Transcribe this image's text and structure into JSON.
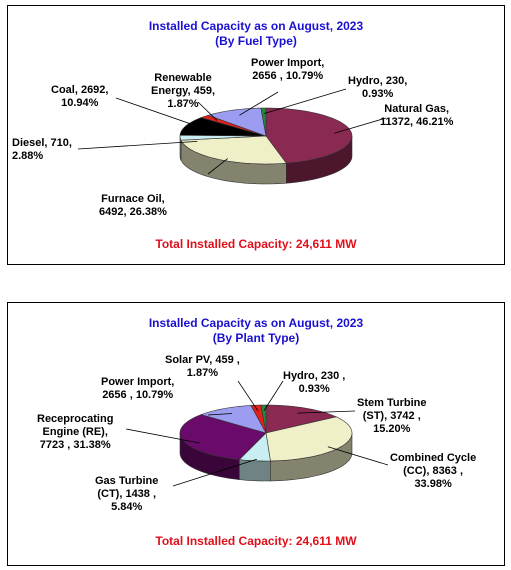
{
  "chart_data": [
    {
      "type": "pie",
      "title": "Installed Capacity as on August, 2023",
      "subtitle": "(By Fuel Type)",
      "total_text": "Total Installed Capacity: 24,611 MW",
      "slices": [
        {
          "name": "Natural Gas",
          "value": 11372,
          "percent": "46.21%",
          "color": "#8a2a52",
          "label_lines": [
            "Natural Gas,",
            "11372, 46.21%"
          ]
        },
        {
          "name": "Furnace Oil",
          "value": 6492,
          "percent": "26.38%",
          "color": "#efefc8",
          "label_lines": [
            "Furnace Oil,",
            "6492, 26.38%"
          ]
        },
        {
          "name": "Diesel",
          "value": 710,
          "percent": "2.88%",
          "color": "#c9eef2",
          "label_lines": [
            "Diesel, 710,",
            "2.88%"
          ]
        },
        {
          "name": "Coal",
          "value": 2692,
          "percent": "10.94%",
          "color": "#000000",
          "label_lines": [
            "Coal, 2692,",
            "10.94%"
          ]
        },
        {
          "name": "Renewable Energy",
          "value": 459,
          "percent": "1.87%",
          "color": "#e0201b",
          "label_lines": [
            "Renewable",
            "Energy, 459,",
            "1.87%"
          ]
        },
        {
          "name": "Power Import",
          "value": 2656,
          "percent": "10.79%",
          "color": "#9c9cf0",
          "label_lines": [
            "Power Import,",
            "2656 , 10.79%"
          ]
        },
        {
          "name": "Hydro",
          "value": 230,
          "percent": "0.93%",
          "color": "#1f8a3c",
          "label_lines": [
            "Hydro, 230,",
            "0.93%"
          ]
        }
      ]
    },
    {
      "type": "pie",
      "title": "Installed Capacity as on August, 2023",
      "subtitle": "(By Plant Type)",
      "total_text": "Total Installed Capacity: 24,611 MW",
      "slices": [
        {
          "name": "Stem Turbine (ST)",
          "value": 3742,
          "percent": "15.20%",
          "color": "#8a2a52",
          "label_lines": [
            "Stem Turbine",
            "(ST), 3742 ,",
            "15.20%"
          ]
        },
        {
          "name": "Combined Cycle (CC)",
          "value": 8363,
          "percent": "33.98%",
          "color": "#efefc8",
          "label_lines": [
            "Combined Cycle",
            "(CC), 8363 ,",
            "33.98%"
          ]
        },
        {
          "name": "Gas Turbine (CT)",
          "value": 1438,
          "percent": "5.84%",
          "color": "#c9eef2",
          "label_lines": [
            "Gas Turbine",
            "(CT), 1438 ,",
            "5.84%"
          ]
        },
        {
          "name": "Receprocating Engine (RE)",
          "value": 7723,
          "percent": "31.38%",
          "color": "#6a0a6a",
          "label_lines": [
            "Receprocating",
            "Engine (RE),",
            "7723 , 31.38%"
          ]
        },
        {
          "name": "Power Import",
          "value": 2656,
          "percent": "10.79%",
          "color": "#9c9cf0",
          "label_lines": [
            "Power Import,",
            "2656 , 10.79%"
          ]
        },
        {
          "name": "Solar PV",
          "value": 459,
          "percent": "1.87%",
          "color": "#e0201b",
          "label_lines": [
            "Solar PV, 459 ,",
            "1.87%"
          ]
        },
        {
          "name": "Hydro",
          "value": 230,
          "percent": "0.93%",
          "color": "#1f8a3c",
          "label_lines": [
            "Hydro, 230 ,",
            "0.93%"
          ]
        }
      ]
    }
  ]
}
